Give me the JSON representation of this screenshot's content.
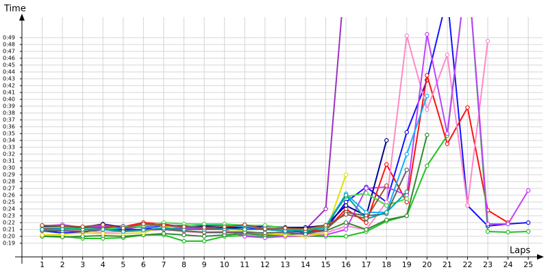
{
  "chart_data": {
    "type": "line",
    "x_label": "Laps",
    "y_label": "Time",
    "x": [
      1,
      2,
      3,
      4,
      5,
      6,
      7,
      8,
      9,
      10,
      11,
      12,
      13,
      14,
      15,
      16,
      17,
      18,
      19,
      20,
      21,
      22,
      23,
      24,
      25
    ],
    "xlim": [
      0,
      25.5
    ],
    "xticks": [
      1,
      2,
      3,
      4,
      5,
      6,
      7,
      8,
      9,
      10,
      11,
      12,
      13,
      14,
      15,
      16,
      17,
      18,
      19,
      20,
      21,
      22,
      23,
      24,
      25
    ],
    "ylim": [
      17,
      52
    ],
    "yticks": [
      {
        "value": 19,
        "label": "0:19"
      },
      {
        "value": 20,
        "label": "0:20"
      },
      {
        "value": 21,
        "label": "0:21"
      },
      {
        "value": 22,
        "label": "0:22"
      },
      {
        "value": 23,
        "label": "0:23"
      },
      {
        "value": 24,
        "label": "0:24"
      },
      {
        "value": 25,
        "label": "0:25"
      },
      {
        "value": 26,
        "label": "0:26"
      },
      {
        "value": 27,
        "label": "0:27"
      },
      {
        "value": 28,
        "label": "0:28"
      },
      {
        "value": 29,
        "label": "0:29"
      },
      {
        "value": 30,
        "label": "0:30"
      },
      {
        "value": 31,
        "label": "0:31"
      },
      {
        "value": 32,
        "label": "0:32"
      },
      {
        "value": 33,
        "label": "0:33"
      },
      {
        "value": 34,
        "label": "0:34"
      },
      {
        "value": 35,
        "label": "0:35"
      },
      {
        "value": 36,
        "label": "0:36"
      },
      {
        "value": 37,
        "label": "0:37"
      },
      {
        "value": 38,
        "label": "0:38"
      },
      {
        "value": 39,
        "label": "0:39"
      },
      {
        "value": 40,
        "label": "0:40"
      },
      {
        "value": 41,
        "label": "0:41"
      },
      {
        "value": 42,
        "label": "0:42"
      },
      {
        "value": 43,
        "label": "0:43"
      },
      {
        "value": 44,
        "label": "0:44"
      },
      {
        "value": 45,
        "label": "0:45"
      },
      {
        "value": 46,
        "label": "0:46"
      },
      {
        "value": 47,
        "label": "0:47"
      },
      {
        "value": 48,
        "label": "0:48"
      },
      {
        "value": 49,
        "label": "0:49"
      }
    ],
    "grid": true,
    "series": [
      {
        "color": "#9b30c0",
        "values": [
          21,
          21.3,
          21,
          21.2,
          21,
          21.5,
          21.3,
          21,
          21,
          21.2,
          21,
          21,
          21.2,
          21,
          24,
          60,
          null,
          null,
          null,
          null,
          null,
          null,
          null,
          null,
          null
        ]
      },
      {
        "color": "#1010ff",
        "values": [
          20.8,
          20.5,
          20.6,
          21,
          21,
          21,
          21.6,
          21.5,
          21.5,
          21.6,
          21.3,
          21,
          20.8,
          20.6,
          21,
          25,
          27.2,
          25,
          35.2,
          42.8,
          55,
          24.5,
          21.5,
          21.8,
          22
        ]
      },
      {
        "color": "#ff1010",
        "values": [
          21.2,
          21.4,
          21.3,
          21.3,
          21.4,
          22,
          21.8,
          21.3,
          21.2,
          21.3,
          21.5,
          21,
          21,
          20.8,
          20.9,
          24,
          22,
          30.5,
          25,
          43.5,
          33.5,
          38.8,
          23.8,
          22,
          null
        ]
      },
      {
        "color": "#20c020",
        "values": [
          20,
          20,
          19.7,
          19.7,
          19.8,
          20.2,
          20.2,
          19.3,
          19.3,
          20,
          20.1,
          20,
          20,
          20,
          20,
          20,
          20.7,
          22.2,
          23,
          30.3,
          34.7,
          60,
          20.7,
          20.6,
          20.7
        ]
      },
      {
        "color": "#ff88c8",
        "values": [
          21,
          21,
          20.8,
          20.6,
          20.7,
          20.8,
          21,
          20.7,
          20.5,
          20.5,
          20.4,
          20.2,
          20.4,
          20.3,
          20.5,
          21.5,
          21,
          25,
          49.3,
          38.5,
          46.5,
          24.5,
          48.5,
          null,
          null
        ]
      },
      {
        "color": "#c040ff",
        "values": [
          21.5,
          21.7,
          21.3,
          21.5,
          21.5,
          21.3,
          21.3,
          21.2,
          21,
          21,
          20,
          19.8,
          20,
          20,
          20.2,
          21,
          27,
          27.2,
          26,
          49.5,
          35,
          60,
          21.8,
          21.8,
          26.7
        ]
      },
      {
        "color": "#2e8b2e",
        "values": [
          20,
          19.9,
          20,
          20.1,
          20,
          20.2,
          20.4,
          20.2,
          20,
          20.2,
          20.4,
          20.2,
          20.2,
          20.5,
          20.8,
          22,
          21,
          22.4,
          23,
          34.8,
          null,
          null,
          null,
          null,
          null
        ]
      },
      {
        "color": "#00008b",
        "values": [
          21.5,
          21.3,
          21.3,
          21.8,
          21.3,
          21.5,
          21.6,
          21.5,
          21.5,
          21.2,
          21.3,
          21.5,
          21.3,
          21.3,
          21.6,
          24.5,
          23,
          34,
          null,
          null,
          null,
          null,
          null,
          null,
          null
        ]
      },
      {
        "color": "#e0e000",
        "values": [
          20.2,
          20.3,
          20.5,
          20.4,
          20.4,
          20.5,
          21.5,
          20.8,
          20.6,
          20.7,
          20.8,
          20.4,
          20.2,
          20,
          20.5,
          29,
          null,
          null,
          null,
          null,
          null,
          null,
          null,
          null,
          null
        ]
      },
      {
        "color": "#10b0ff",
        "values": [
          21,
          21,
          21.2,
          21,
          21.2,
          21.5,
          21.6,
          21.4,
          21.7,
          21.6,
          21.4,
          21.2,
          21,
          20.7,
          21.5,
          26.2,
          23.5,
          23.5,
          32,
          40.5,
          null,
          null,
          null,
          null,
          null
        ]
      },
      {
        "color": "#44dd44",
        "values": [
          21.3,
          21.3,
          21.1,
          21,
          21.4,
          21.5,
          22,
          21.8,
          21.8,
          21.8,
          21.6,
          21.6,
          21.2,
          21,
          21.5,
          25.8,
          26.3,
          24.5,
          25.5,
          null,
          null,
          null,
          null,
          null,
          null
        ]
      },
      {
        "color": "#606060",
        "values": [
          20.8,
          20.8,
          20.7,
          21,
          20.8,
          21,
          21,
          20.8,
          20.6,
          20.6,
          20.6,
          20.5,
          20.6,
          20.3,
          21,
          23.5,
          23,
          23.3,
          29.7,
          null,
          null,
          null,
          null,
          null,
          null
        ]
      },
      {
        "color": "#00a0a0",
        "values": [
          21,
          21.1,
          21,
          21,
          20.7,
          20.9,
          21.2,
          21,
          21,
          21.1,
          21,
          21,
          20.8,
          20.8,
          21.3,
          26,
          22.5,
          23.5,
          26.5,
          null,
          null,
          null,
          null,
          null,
          null
        ]
      },
      {
        "color": "#a0522d",
        "values": [
          21.6,
          21.5,
          21.4,
          21.7,
          21.2,
          21.8,
          21.6,
          21.4,
          21.3,
          21.4,
          21.7,
          21.1,
          21.2,
          21.1,
          21.6,
          23.2,
          22.6,
          27.4,
          null,
          null,
          null,
          null,
          null,
          null,
          null
        ]
      }
    ]
  }
}
